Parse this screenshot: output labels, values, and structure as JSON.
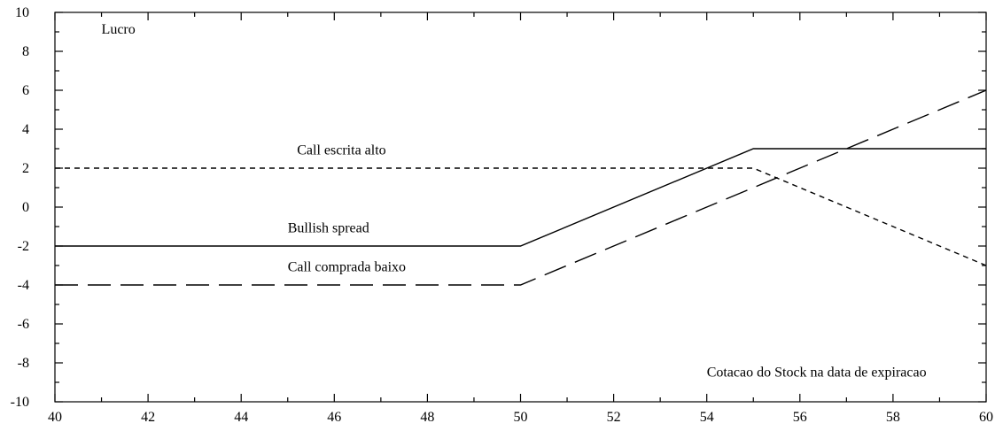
{
  "chart_data": {
    "type": "line",
    "title": "",
    "xlabel": "",
    "ylabel": "",
    "xlim": [
      40,
      60
    ],
    "ylim": [
      -10,
      10
    ],
    "x_major_ticks": [
      40,
      42,
      44,
      46,
      48,
      50,
      52,
      54,
      56,
      58,
      60
    ],
    "x_minor_step": 1,
    "y_major_ticks": [
      -10,
      -8,
      -6,
      -4,
      -2,
      0,
      2,
      4,
      6,
      8,
      10
    ],
    "y_minor_step": 1,
    "grid": false,
    "legend": "none",
    "series": [
      {
        "name": "Call escrita alto",
        "dash": "short-dash",
        "color": "#000000",
        "x": [
          40,
          55,
          60
        ],
        "y": [
          2,
          2,
          -3
        ]
      },
      {
        "name": "Bullish spread",
        "dash": "solid",
        "color": "#000000",
        "x": [
          40,
          50,
          55,
          60
        ],
        "y": [
          -2,
          -2,
          3,
          3
        ]
      },
      {
        "name": "Call comprada baixo",
        "dash": "long-dash",
        "color": "#000000",
        "x": [
          40,
          50,
          60
        ],
        "y": [
          -4,
          -4,
          6
        ]
      }
    ],
    "annotations": [
      {
        "text": "Lucro",
        "x": 41,
        "y": 8.9
      },
      {
        "text": "Call escrita alto",
        "x": 45.2,
        "y": 2.7
      },
      {
        "text": "Bullish spread",
        "x": 45,
        "y": -1.3
      },
      {
        "text": "Call comprada baixo",
        "x": 45,
        "y": -3.3
      },
      {
        "text": "Cotacao do Stock na data de expiracao",
        "x": 54,
        "y": -8.7
      }
    ]
  }
}
